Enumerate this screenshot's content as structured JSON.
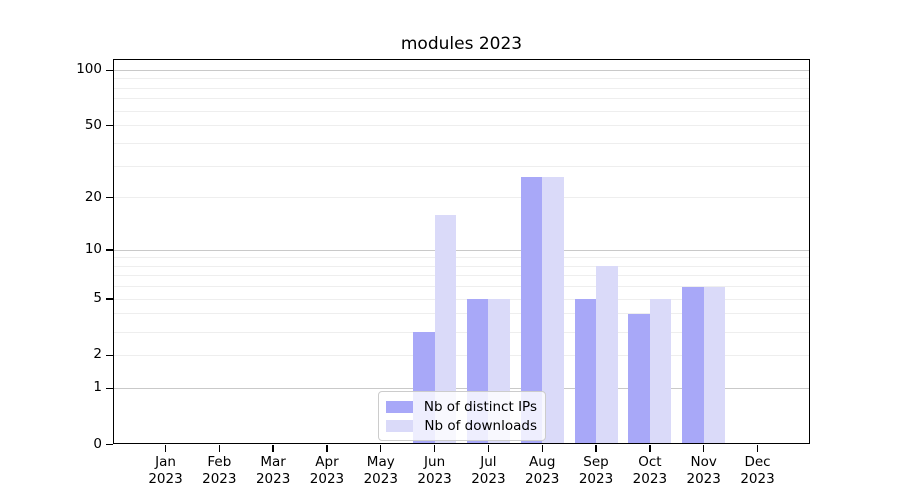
{
  "title": "modules 2023",
  "colors": {
    "distinct_ips": "#a8a8f8",
    "downloads": "#dadaf9",
    "grid_major": "#c9c9c9",
    "grid_minor": "#eeeeee",
    "axis": "#000000",
    "legend_border": "#cccccc",
    "background": "#ffffff"
  },
  "legend": {
    "position": "lower center",
    "items": [
      {
        "label": "Nb of distinct IPs"
      },
      {
        "label": "Nb of downloads"
      }
    ]
  },
  "chart_data": {
    "type": "bar",
    "title": "modules 2023",
    "xlabel": "",
    "ylabel": "",
    "categories": [
      "Jan 2023",
      "Feb 2023",
      "Mar 2023",
      "Apr 2023",
      "May 2023",
      "Jun 2023",
      "Jul 2023",
      "Aug 2023",
      "Sep 2023",
      "Oct 2023",
      "Nov 2023",
      "Dec 2023"
    ],
    "series": [
      {
        "name": "Nb of distinct IPs",
        "color": "#a8a8f8",
        "values": [
          0,
          0,
          0,
          0,
          0,
          3,
          5,
          26,
          5,
          4,
          6,
          0
        ]
      },
      {
        "name": "Nb of downloads",
        "color": "#dadaf9",
        "values": [
          0,
          0,
          0,
          0,
          0,
          16,
          5,
          26,
          8,
          5,
          6,
          0
        ]
      }
    ],
    "y_scale": "log1p",
    "ylim": [
      0,
      115
    ],
    "y_ticks": [
      0,
      1,
      2,
      5,
      10,
      20,
      50,
      100
    ],
    "y_major_gridlines": [
      1,
      10,
      100
    ],
    "y_minor_gridlines": [
      2,
      3,
      4,
      5,
      6,
      7,
      8,
      9,
      20,
      30,
      40,
      50,
      60,
      70,
      80,
      90
    ],
    "grid": "horizontal",
    "legend_position": "lower center"
  }
}
